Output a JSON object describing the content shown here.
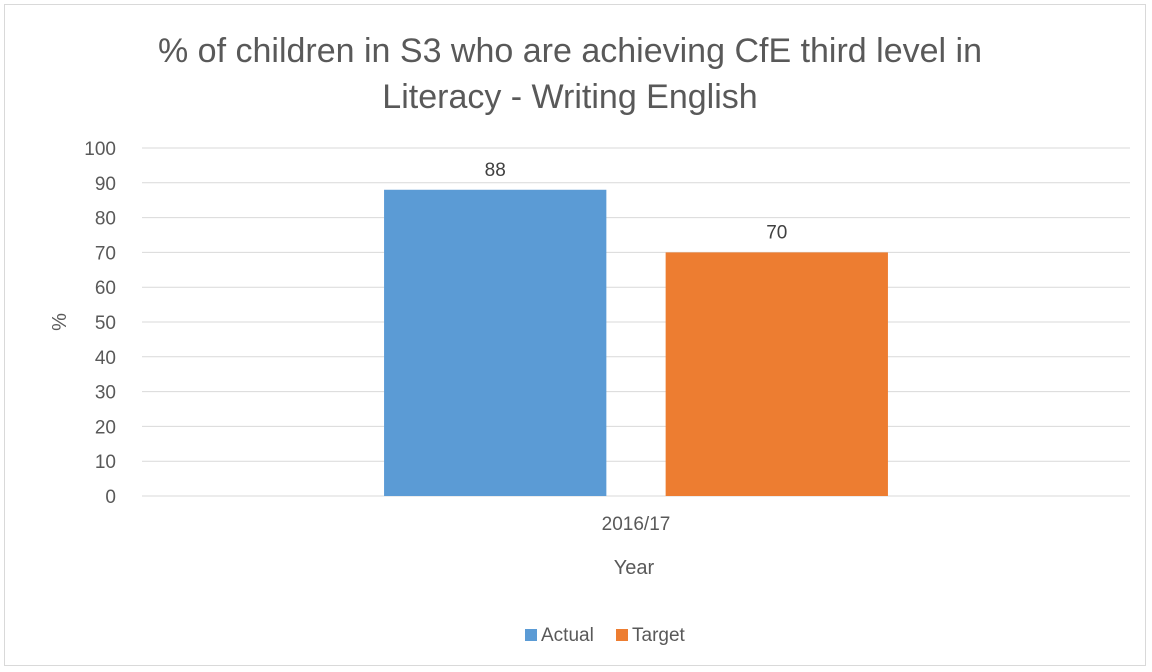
{
  "chart_data": {
    "type": "bar",
    "title_lines": [
      "% of children in S3 who are achieving CfE third level in",
      "Literacy - Writing English"
    ],
    "xlabel": "Year",
    "ylabel": "%",
    "categories": [
      "2016/17"
    ],
    "series": [
      {
        "name": "Actual",
        "values": [
          88
        ],
        "color": "#5b9bd5"
      },
      {
        "name": "Target",
        "values": [
          70
        ],
        "color": "#ed7d31"
      }
    ],
    "ylim": [
      0,
      100
    ],
    "yticks": [
      0,
      10,
      20,
      30,
      40,
      50,
      60,
      70,
      80,
      90,
      100
    ],
    "data_labels": true,
    "grid": true,
    "legend_position": "bottom"
  }
}
